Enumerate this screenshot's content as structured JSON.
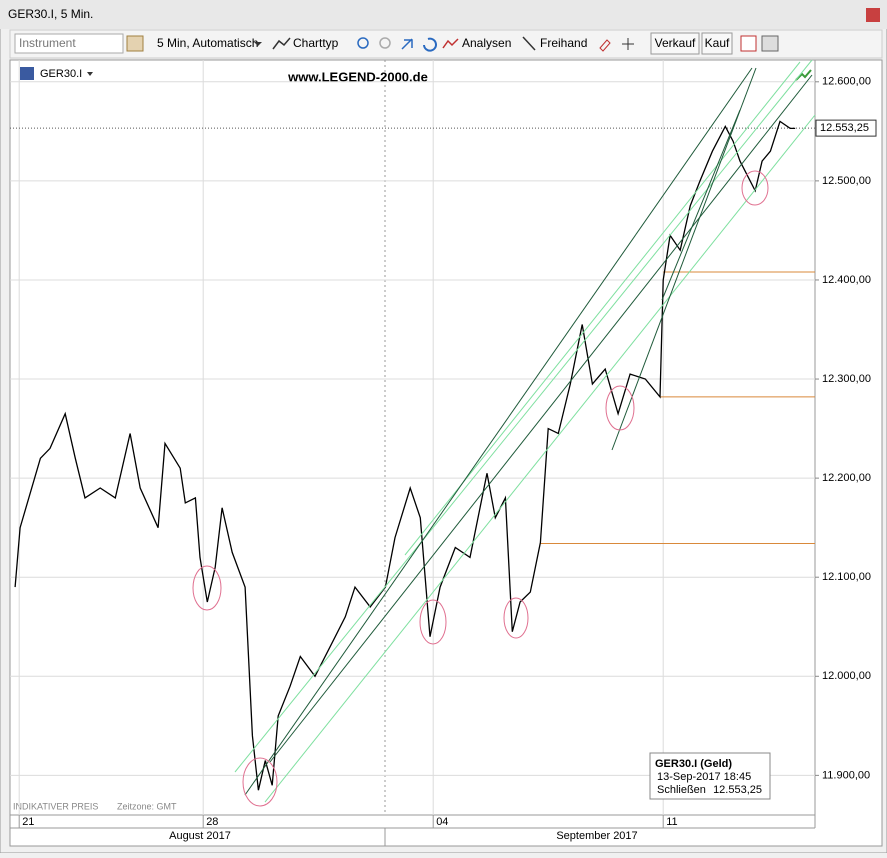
{
  "window": {
    "title": "GER30.I, 5 Min."
  },
  "toolbar": {
    "instrument_placeholder": "Instrument",
    "interval": "5 Min,  Automatisch",
    "chart_type": "Charttyp",
    "analyses": "Analysen",
    "freehand": "Freihand",
    "sell": "Verkauf",
    "buy": "Kauf"
  },
  "chart_data": {
    "type": "line",
    "watermark": "www.LEGEND-2000.de",
    "footer_note": "INDIKATIVER PREIS",
    "timezone": "Zeitzone: GMT",
    "months": [
      "August 2017",
      "September 2017"
    ],
    "x": [
      0.91,
      1.02,
      1.46,
      1.67,
      2.0,
      2.22,
      2.43,
      2.76,
      3.09,
      3.41,
      3.63,
      4.02,
      4.17,
      4.5,
      4.61,
      4.83,
      4.93,
      5.09,
      5.26,
      5.41,
      5.63,
      5.91,
      6.07,
      6.2,
      6.35,
      6.5,
      6.63,
      6.89,
      7.11,
      7.43,
      7.76,
      8.09,
      8.3,
      8.63,
      8.96,
      9.17,
      9.5,
      9.72,
      9.93,
      10.15,
      10.48,
      10.8,
      11.17,
      11.35,
      11.57,
      11.72,
      11.89,
      12.11,
      12.33,
      12.5,
      12.72,
      12.98,
      13.24,
      13.46,
      13.74,
      14.02,
      14.28,
      14.61,
      14.93,
      15.0,
      15.15,
      15.37,
      15.59,
      15.8,
      16.07,
      16.35,
      16.52,
      16.67,
      17.0,
      17.15,
      17.33,
      17.54,
      17.76,
      17.87
    ],
    "series": [
      {
        "name": "GER30.I",
        "color": "#000000",
        "values": [
          12090,
          12150,
          12220,
          12230,
          12265,
          12220,
          12180,
          12190,
          12180,
          12245,
          12190,
          12150,
          12235,
          12210,
          12175,
          12180,
          12120,
          12075,
          12110,
          12170,
          12125,
          12090,
          11940,
          11885,
          11915,
          11890,
          11960,
          11990,
          12020,
          12000,
          12030,
          12060,
          12090,
          12070,
          12090,
          12140,
          12190,
          12160,
          12040,
          12090,
          12130,
          12120,
          12205,
          12160,
          12180,
          12045,
          12075,
          12085,
          12135,
          12250,
          12245,
          12295,
          12355,
          12295,
          12310,
          12265,
          12305,
          12300,
          12282,
          12400,
          12445,
          12430,
          12475,
          12500,
          12530,
          12555,
          12540,
          12520,
          12490,
          12520,
          12530,
          12560,
          12553,
          12553
        ]
      }
    ],
    "xlim": [
      0.8,
      18.3
    ],
    "ylim": [
      11860,
      12622
    ],
    "xticks": [
      {
        "value": 1,
        "label": "21"
      },
      {
        "value": 5,
        "label": "28"
      },
      {
        "value": 10,
        "label": "04"
      },
      {
        "value": 15,
        "label": "11"
      }
    ],
    "yticks": [
      {
        "value": 11900,
        "label": "11.900,00"
      },
      {
        "value": 12000,
        "label": "12.000,00"
      },
      {
        "value": 12100,
        "label": "12.100,00"
      },
      {
        "value": 12200,
        "label": "12.200,00"
      },
      {
        "value": 12300,
        "label": "12.300,00"
      },
      {
        "value": 12400,
        "label": "12.400,00"
      },
      {
        "value": 12500,
        "label": "12.500,00"
      },
      {
        "value": 12600,
        "label": "12.600,00"
      }
    ],
    "grid": true,
    "levels": [
      {
        "value": 12408,
        "from": 15.0
      },
      {
        "value": 12282,
        "from": 14.93
      },
      {
        "value": 12134,
        "from": 12.33
      }
    ],
    "level_color": "#d9893a",
    "last_price": {
      "value": 12553.25,
      "label": "12.553,25"
    },
    "info": {
      "title": "GER30.I (Geld)",
      "time": "13-Sep-2017 18:45",
      "field": "Schließen",
      "value": "12.553,25"
    }
  }
}
